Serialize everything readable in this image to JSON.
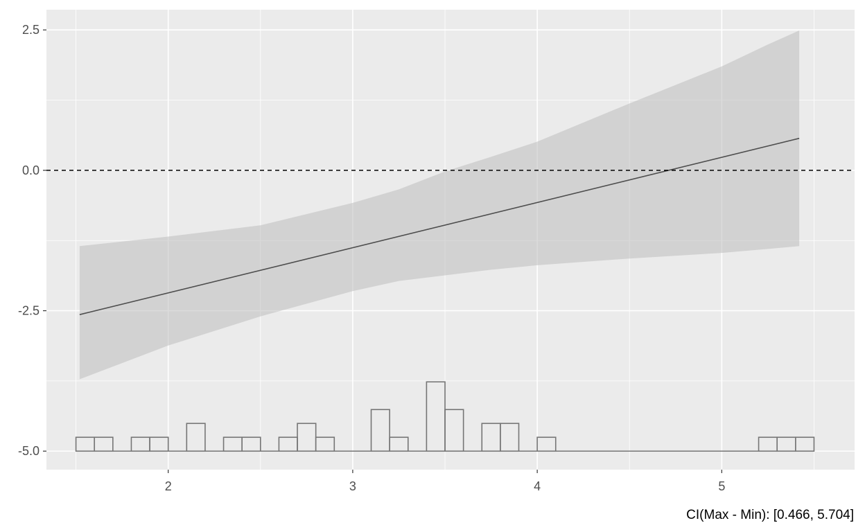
{
  "chart_data": {
    "type": "line",
    "title": "",
    "xlabel": "",
    "ylabel": "",
    "caption": "CI(Max - Min): [0.466, 5.704]",
    "xlim": [
      1.34,
      5.72
    ],
    "ylim": [
      -5.33,
      2.86
    ],
    "x_ticks": [
      2,
      3,
      4,
      5
    ],
    "x_tick_labels": [
      "2",
      "3",
      "4",
      "5"
    ],
    "y_ticks": [
      2.5,
      0.0,
      -2.5,
      -5.0
    ],
    "y_tick_labels": [
      "2.5",
      "0.0",
      "-2.5",
      "-5.0"
    ],
    "grid": true,
    "reference_line": {
      "y": 0.0,
      "style": "dashed"
    },
    "series": [
      {
        "type": "line",
        "x": [
          1.52,
          5.42
        ],
        "y": [
          -2.57,
          0.57
        ]
      },
      {
        "type": "band",
        "x": [
          1.52,
          2.0,
          2.5,
          3.0,
          3.25,
          3.5,
          3.75,
          4.0,
          4.5,
          5.0,
          5.25,
          5.42
        ],
        "lower": [
          -3.72,
          -3.12,
          -2.6,
          -2.15,
          -1.97,
          -1.87,
          -1.77,
          -1.69,
          -1.57,
          -1.47,
          -1.4,
          -1.35
        ],
        "upper": [
          -1.35,
          -1.18,
          -0.98,
          -0.58,
          -0.34,
          -0.02,
          0.24,
          0.51,
          1.19,
          1.85,
          2.24,
          2.49
        ]
      }
    ],
    "histogram": {
      "baseline": -5.0,
      "bin_width": 0.1,
      "bins": [
        {
          "x": 1.55,
          "count": 1
        },
        {
          "x": 1.65,
          "count": 1
        },
        {
          "x": 1.85,
          "count": 1
        },
        {
          "x": 1.95,
          "count": 1
        },
        {
          "x": 2.15,
          "count": 2
        },
        {
          "x": 2.35,
          "count": 1
        },
        {
          "x": 2.45,
          "count": 1
        },
        {
          "x": 2.65,
          "count": 1
        },
        {
          "x": 2.75,
          "count": 2
        },
        {
          "x": 2.85,
          "count": 1
        },
        {
          "x": 3.15,
          "count": 3
        },
        {
          "x": 3.25,
          "count": 1
        },
        {
          "x": 3.45,
          "count": 5
        },
        {
          "x": 3.55,
          "count": 3
        },
        {
          "x": 3.75,
          "count": 2
        },
        {
          "x": 3.85,
          "count": 2
        },
        {
          "x": 4.05,
          "count": 1
        },
        {
          "x": 5.25,
          "count": 1
        },
        {
          "x": 5.35,
          "count": 1
        },
        {
          "x": 5.45,
          "count": 1
        }
      ],
      "range": [
        1.5,
        5.5
      ]
    }
  }
}
